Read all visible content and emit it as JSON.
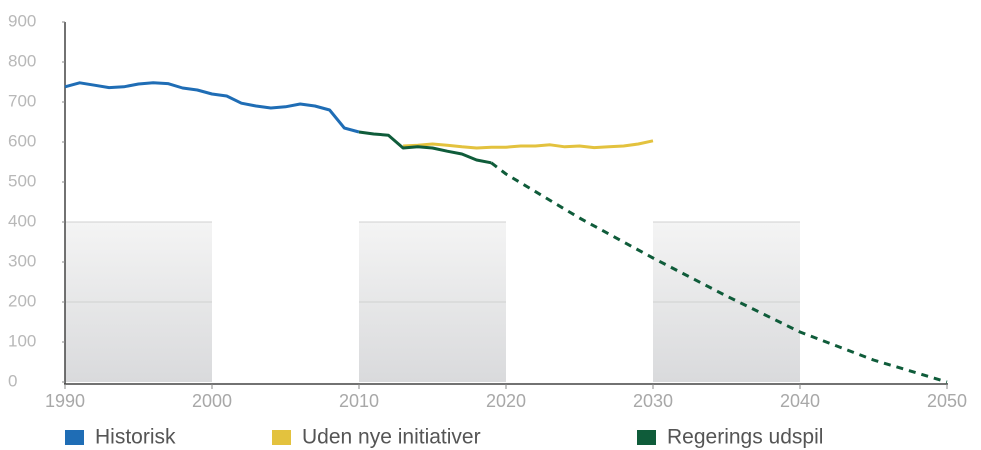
{
  "chart_data": {
    "type": "line",
    "xlim": [
      1990,
      2050
    ],
    "ylim": [
      0,
      900
    ],
    "xticks": [
      1990,
      2000,
      2010,
      2020,
      2030,
      2040,
      2050
    ],
    "yticks": [
      0,
      100,
      200,
      300,
      400,
      500,
      600,
      700,
      800,
      900
    ],
    "series": [
      {
        "name": "Historisk",
        "color": "#1f6db5",
        "x": [
          1990,
          1991,
          1992,
          1993,
          1994,
          1995,
          1996,
          1997,
          1998,
          1999,
          2000,
          2001,
          2002,
          2003,
          2004,
          2005,
          2006,
          2007,
          2008,
          2009,
          2010
        ],
        "values": [
          738,
          748,
          742,
          736,
          738,
          745,
          748,
          746,
          735,
          730,
          720,
          715,
          697,
          690,
          685,
          688,
          695,
          690,
          680,
          635,
          625
        ]
      },
      {
        "name": "Uden nye initiativer",
        "color": "#e3c23e",
        "x": [
          2013,
          2014,
          2015,
          2016,
          2017,
          2018,
          2019,
          2020,
          2021,
          2022,
          2023,
          2024,
          2025,
          2026,
          2027,
          2028,
          2029,
          2030
        ],
        "values": [
          590,
          592,
          595,
          592,
          588,
          585,
          587,
          587,
          590,
          590,
          593,
          588,
          590,
          586,
          588,
          590,
          595,
          603
        ]
      },
      {
        "name": "Regerings udspil",
        "color": "#0f5c3a",
        "dash_from": 2019,
        "x": [
          2010,
          2011,
          2012,
          2013,
          2014,
          2015,
          2016,
          2017,
          2018,
          2019,
          2020,
          2025,
          2030,
          2035,
          2040,
          2045,
          2050
        ],
        "values": [
          625,
          620,
          617,
          585,
          588,
          585,
          577,
          570,
          555,
          548,
          520,
          410,
          310,
          215,
          125,
          55,
          0
        ]
      }
    ]
  }
}
